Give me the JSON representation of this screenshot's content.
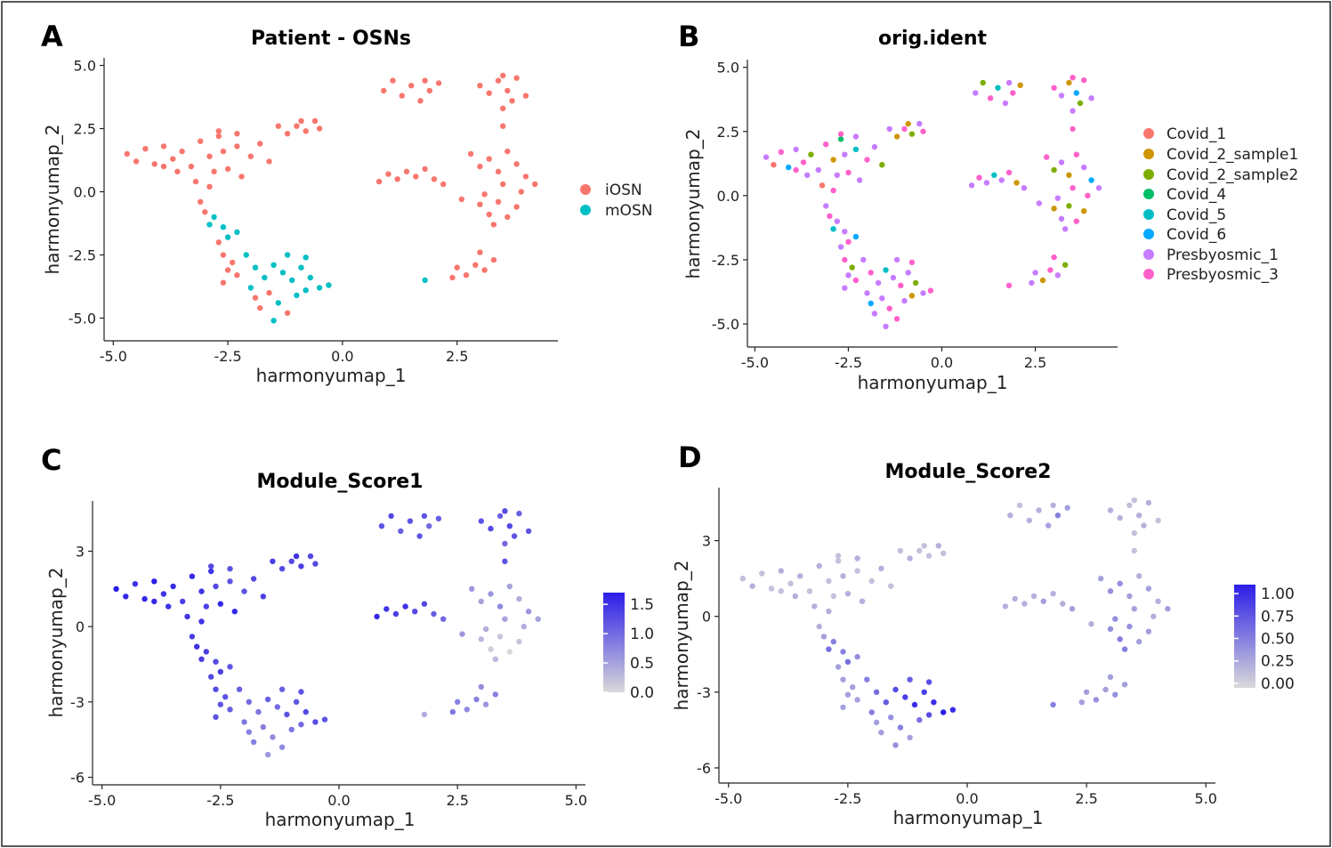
{
  "chart_data": [
    {
      "panel": "A",
      "type": "scatter",
      "title": "Patient - OSNs",
      "xlabel": "harmonyumap_1",
      "ylabel": "harmonyumap_2",
      "xlim": [
        -5.2,
        4.7
      ],
      "ylim": [
        -5.9,
        5.3
      ],
      "xticks": [
        -5.0,
        -2.5,
        0.0,
        2.5
      ],
      "yticks": [
        -5.0,
        -2.5,
        0.0,
        2.5,
        5.0
      ],
      "xticklabels": [
        "-5.0",
        "-2.5",
        "0.0",
        "2.5"
      ],
      "yticklabels": [
        "-5.0",
        "-2.5",
        "0.0",
        "2.5",
        "5.0"
      ],
      "color_mode": "categorical",
      "legend": {
        "position": "right",
        "title": "",
        "items": [
          {
            "name": "iOSN",
            "color": "#F8766D"
          },
          {
            "name": "mOSN",
            "color": "#00BFC4"
          }
        ]
      }
    },
    {
      "panel": "B",
      "type": "scatter",
      "title": "orig.ident",
      "xlabel": "harmonyumap_1",
      "ylabel": "harmonyumap_2",
      "xlim": [
        -5.2,
        4.7
      ],
      "ylim": [
        -5.9,
        5.3
      ],
      "xticks": [
        -5.0,
        -2.5,
        0.0,
        2.5
      ],
      "yticks": [
        -5.0,
        -2.5,
        0.0,
        2.5,
        5.0
      ],
      "xticklabels": [
        "-5.0",
        "-2.5",
        "0.0",
        "2.5"
      ],
      "yticklabels": [
        "-5.0",
        "-2.5",
        "0.0",
        "2.5",
        "5.0"
      ],
      "color_mode": "categorical",
      "legend": {
        "position": "right",
        "title": "",
        "items": [
          {
            "name": "Covid_1",
            "color": "#F8766D"
          },
          {
            "name": "Covid_2_sample1",
            "color": "#CD9600"
          },
          {
            "name": "Covid_2_sample2",
            "color": "#7CAE00"
          },
          {
            "name": "Covid_4",
            "color": "#00BE67"
          },
          {
            "name": "Covid_5",
            "color": "#00BFC4"
          },
          {
            "name": "Covid_6",
            "color": "#00A9FF"
          },
          {
            "name": "Presbyosmic_1",
            "color": "#C77CFF"
          },
          {
            "name": "Presbyosmic_3",
            "color": "#FF61CC"
          }
        ]
      }
    },
    {
      "panel": "C",
      "type": "scatter",
      "title": "Module_Score1",
      "xlabel": "harmonyumap_1",
      "ylabel": "harmonyumap_2",
      "xlim": [
        -5.2,
        5.2
      ],
      "ylim": [
        -6.3,
        5.0
      ],
      "xticks": [
        -5.0,
        -2.5,
        0.0,
        2.5,
        5.0
      ],
      "yticks": [
        -6,
        -3,
        0,
        3
      ],
      "xticklabels": [
        "-5.0",
        "-2.5",
        "0.0",
        "2.5",
        "5.0"
      ],
      "yticklabels": [
        "-6",
        "-3",
        "0",
        "3"
      ],
      "color_mode": "gradient",
      "gradient": [
        "#D9D9D9",
        "#2B1DE8"
      ],
      "colorbar": {
        "min": 0.0,
        "max": 1.7,
        "ticks": [
          0.0,
          0.5,
          1.0,
          1.5
        ],
        "ticklabels": [
          "0.0",
          "0.5",
          "1.0",
          "1.5"
        ]
      }
    },
    {
      "panel": "D",
      "type": "scatter",
      "title": "Module_Score2",
      "xlabel": "harmonyumap_1",
      "ylabel": "harmonyumap_2",
      "xlim": [
        -5.2,
        5.2
      ],
      "ylim": [
        -6.6,
        5.1
      ],
      "xticks": [
        -5.0,
        -2.5,
        0.0,
        2.5,
        5.0
      ],
      "yticks": [
        -6,
        -3,
        0,
        3
      ],
      "xticklabels": [
        "-5.0",
        "-2.5",
        "0.0",
        "2.5",
        "5.0"
      ],
      "yticklabels": [
        "-6",
        "-3",
        "0",
        "3"
      ],
      "color_mode": "gradient",
      "gradient": [
        "#D9D9D9",
        "#2B1DE8"
      ],
      "colorbar": {
        "min": -0.05,
        "max": 1.1,
        "ticks": [
          0.0,
          0.25,
          0.5,
          0.75,
          1.0
        ],
        "ticklabels": [
          "0.00",
          "0.25",
          "0.50",
          "0.75",
          "1.00"
        ]
      }
    }
  ],
  "cluster_points": {
    "columns": [
      "x",
      "y",
      "cell_type",
      "orig_ident_index",
      "module_score1",
      "module_score2"
    ],
    "rows": [
      [
        -4.7,
        1.5,
        "iOSN",
        6,
        1.7,
        0.1
      ],
      [
        -4.5,
        1.2,
        "iOSN",
        0,
        1.6,
        0.2
      ],
      [
        -4.3,
        1.7,
        "iOSN",
        7,
        1.5,
        0.1
      ],
      [
        -4.1,
        1.1,
        "iOSN",
        5,
        1.6,
        0.1
      ],
      [
        -3.9,
        1.8,
        "iOSN",
        6,
        1.7,
        0.2
      ],
      [
        -3.7,
        1.3,
        "iOSN",
        7,
        1.5,
        0.1
      ],
      [
        -3.5,
        1.6,
        "iOSN",
        2,
        1.6,
        0.2
      ],
      [
        -3.3,
        1.0,
        "iOSN",
        6,
        1.4,
        0.1
      ],
      [
        -3.1,
        2.0,
        "iOSN",
        7,
        1.6,
        0.2
      ],
      [
        -2.9,
        1.4,
        "iOSN",
        1,
        1.5,
        0.1
      ],
      [
        -2.7,
        2.2,
        "iOSN",
        3,
        1.5,
        0.1
      ],
      [
        -2.6,
        1.6,
        "iOSN",
        6,
        1.3,
        0.2
      ],
      [
        -2.5,
        0.9,
        "iOSN",
        7,
        1.6,
        0.2
      ],
      [
        -2.3,
        1.8,
        "iOSN",
        4,
        1.2,
        0.1
      ],
      [
        -2.2,
        0.6,
        "iOSN",
        6,
        1.6,
        0.2
      ],
      [
        -2.0,
        1.4,
        "iOSN",
        7,
        1.2,
        0.1
      ],
      [
        -1.8,
        1.9,
        "iOSN",
        6,
        1.3,
        0.2
      ],
      [
        -1.6,
        1.2,
        "iOSN",
        2,
        1.4,
        0.1
      ],
      [
        -3.9,
        1.0,
        "iOSN",
        7,
        1.6,
        0.1
      ],
      [
        -3.6,
        0.8,
        "iOSN",
        6,
        1.5,
        0.2
      ],
      [
        -2.8,
        0.8,
        "iOSN",
        6,
        1.4,
        0.1
      ],
      [
        -2.9,
        0.2,
        "iOSN",
        7,
        1.5,
        0.2
      ],
      [
        -3.2,
        0.4,
        "iOSN",
        0,
        1.5,
        0.2
      ],
      [
        -2.7,
        2.4,
        "iOSN",
        7,
        1.3,
        0.1
      ],
      [
        -2.3,
        2.3,
        "iOSN",
        6,
        1.2,
        0.2
      ],
      [
        -1.4,
        2.6,
        "iOSN",
        6,
        1.4,
        0.1
      ],
      [
        -1.2,
        2.3,
        "iOSN",
        1,
        1.3,
        0.2
      ],
      [
        -1.0,
        2.6,
        "iOSN",
        7,
        1.3,
        0.1
      ],
      [
        -0.8,
        2.4,
        "iOSN",
        2,
        1.4,
        0.1
      ],
      [
        -0.6,
        2.8,
        "iOSN",
        6,
        1.3,
        0.2
      ],
      [
        -0.5,
        2.5,
        "iOSN",
        7,
        1.3,
        0.1
      ],
      [
        -0.9,
        2.8,
        "iOSN",
        1,
        1.5,
        0.1
      ],
      [
        -3.1,
        -0.4,
        "iOSN",
        6,
        1.4,
        0.2
      ],
      [
        -3.0,
        -0.8,
        "iOSN",
        7,
        1.5,
        0.3
      ],
      [
        -2.8,
        -1.0,
        "mOSN",
        6,
        1.4,
        0.5
      ],
      [
        -2.9,
        -1.3,
        "mOSN",
        4,
        1.4,
        0.6
      ],
      [
        -2.6,
        -1.4,
        "mOSN",
        6,
        1.3,
        0.5
      ],
      [
        -2.5,
        -1.8,
        "mOSN",
        7,
        1.4,
        0.6
      ],
      [
        -2.3,
        -1.6,
        "mOSN",
        5,
        1.2,
        0.4
      ],
      [
        -2.7,
        -2.0,
        "iOSN",
        6,
        1.3,
        0.3
      ],
      [
        -2.6,
        -2.5,
        "iOSN",
        7,
        1.3,
        0.3
      ],
      [
        -2.4,
        -2.8,
        "iOSN",
        2,
        1.2,
        0.3
      ],
      [
        -2.5,
        -3.1,
        "iOSN",
        6,
        1.2,
        0.3
      ],
      [
        -2.3,
        -3.3,
        "iOSN",
        7,
        1.1,
        0.3
      ],
      [
        -2.6,
        -3.6,
        "iOSN",
        6,
        1.2,
        0.3
      ],
      [
        -2.1,
        -2.5,
        "mOSN",
        6,
        1.1,
        0.5
      ],
      [
        -1.9,
        -3.0,
        "mOSN",
        7,
        1.0,
        0.6
      ],
      [
        -1.7,
        -3.4,
        "mOSN",
        6,
        0.9,
        0.7
      ],
      [
        -1.5,
        -2.9,
        "mOSN",
        4,
        1.1,
        0.8
      ],
      [
        -1.3,
        -3.2,
        "mOSN",
        6,
        1.0,
        0.9
      ],
      [
        -1.1,
        -3.5,
        "mOSN",
        7,
        1.2,
        1.0
      ],
      [
        -0.9,
        -3.0,
        "mOSN",
        6,
        1.2,
        0.9
      ],
      [
        -0.7,
        -3.4,
        "mOSN",
        2,
        1.3,
        1.0
      ],
      [
        -0.5,
        -3.8,
        "mOSN",
        6,
        1.3,
        1.1
      ],
      [
        -0.3,
        -3.7,
        "mOSN",
        7,
        1.2,
        1.0
      ],
      [
        -1.2,
        -2.5,
        "mOSN",
        6,
        1.1,
        0.7
      ],
      [
        -0.8,
        -2.6,
        "mOSN",
        7,
        1.2,
        0.8
      ],
      [
        -1.6,
        -4.0,
        "iOSN",
        6,
        0.8,
        0.4
      ],
      [
        -1.4,
        -4.4,
        "mOSN",
        7,
        0.7,
        0.5
      ],
      [
        -1.8,
        -4.6,
        "iOSN",
        6,
        0.8,
        0.3
      ],
      [
        -1.2,
        -4.8,
        "iOSN",
        7,
        0.7,
        0.3
      ],
      [
        -1.5,
        -5.1,
        "mOSN",
        6,
        0.6,
        0.4
      ],
      [
        -1.9,
        -4.2,
        "iOSN",
        5,
        0.8,
        0.3
      ],
      [
        -1.0,
        -4.1,
        "mOSN",
        6,
        0.9,
        0.6
      ],
      [
        -0.8,
        -3.9,
        "mOSN",
        1,
        1.0,
        0.8
      ],
      [
        -2.0,
        -3.8,
        "mOSN",
        6,
        0.9,
        0.5
      ],
      [
        0.9,
        4.0,
        "iOSN",
        6,
        1.2,
        0.2
      ],
      [
        1.1,
        4.4,
        "iOSN",
        2,
        1.3,
        0.1
      ],
      [
        1.3,
        3.8,
        "iOSN",
        7,
        1.1,
        0.2
      ],
      [
        1.5,
        4.2,
        "iOSN",
        4,
        1.2,
        0.2
      ],
      [
        1.7,
        3.6,
        "iOSN",
        6,
        1.2,
        0.3
      ],
      [
        1.9,
        4.0,
        "iOSN",
        7,
        1.0,
        0.5
      ],
      [
        2.1,
        4.3,
        "iOSN",
        1,
        1.1,
        0.3
      ],
      [
        1.8,
        4.4,
        "iOSN",
        6,
        1.2,
        0.2
      ],
      [
        3.0,
        4.2,
        "iOSN",
        7,
        1.2,
        0.2
      ],
      [
        3.2,
        3.9,
        "iOSN",
        6,
        1.3,
        0.2
      ],
      [
        3.4,
        4.4,
        "iOSN",
        1,
        1.1,
        0.1
      ],
      [
        3.6,
        4.0,
        "iOSN",
        5,
        1.3,
        0.2
      ],
      [
        3.8,
        4.5,
        "iOSN",
        7,
        1.1,
        0.2
      ],
      [
        4.0,
        3.8,
        "iOSN",
        6,
        1.2,
        0.1
      ],
      [
        3.7,
        3.6,
        "iOSN",
        2,
        1.2,
        0.2
      ],
      [
        3.5,
        4.6,
        "iOSN",
        7,
        1.3,
        0.1
      ],
      [
        3.5,
        3.3,
        "iOSN",
        6,
        1.0,
        0.1
      ],
      [
        3.5,
        2.6,
        "iOSN",
        7,
        1.2,
        0.1
      ],
      [
        0.8,
        0.4,
        "iOSN",
        6,
        1.6,
        0.2
      ],
      [
        1.0,
        0.7,
        "iOSN",
        7,
        1.5,
        0.2
      ],
      [
        1.2,
        0.5,
        "iOSN",
        6,
        1.4,
        0.2
      ],
      [
        1.4,
        0.8,
        "iOSN",
        4,
        1.5,
        0.2
      ],
      [
        1.6,
        0.6,
        "iOSN",
        6,
        1.3,
        0.3
      ],
      [
        1.8,
        0.9,
        "iOSN",
        7,
        1.3,
        0.2
      ],
      [
        2.0,
        0.5,
        "iOSN",
        1,
        1.1,
        0.2
      ],
      [
        2.2,
        0.3,
        "iOSN",
        6,
        1.0,
        0.3
      ],
      [
        2.8,
        1.5,
        "iOSN",
        7,
        0.6,
        0.3
      ],
      [
        3.0,
        1.0,
        "iOSN",
        2,
        0.5,
        0.4
      ],
      [
        3.2,
        1.3,
        "iOSN",
        6,
        0.6,
        0.4
      ],
      [
        3.4,
        0.8,
        "iOSN",
        1,
        0.7,
        0.3
      ],
      [
        3.6,
        1.6,
        "iOSN",
        7,
        0.5,
        0.2
      ],
      [
        3.8,
        1.1,
        "iOSN",
        6,
        0.4,
        0.3
      ],
      [
        4.0,
        0.6,
        "iOSN",
        5,
        0.6,
        0.2
      ],
      [
        4.2,
        0.3,
        "iOSN",
        6,
        0.5,
        0.3
      ],
      [
        3.9,
        0.0,
        "iOSN",
        7,
        0.4,
        0.2
      ],
      [
        3.0,
        -0.5,
        "iOSN",
        1,
        0.3,
        0.4
      ],
      [
        3.2,
        -0.9,
        "iOSN",
        6,
        0.1,
        0.5
      ],
      [
        3.4,
        -0.4,
        "iOSN",
        2,
        0.2,
        0.4
      ],
      [
        3.6,
        -1.0,
        "iOSN",
        7,
        0.0,
        0.3
      ],
      [
        3.3,
        -1.3,
        "iOSN",
        6,
        0.3,
        0.5
      ],
      [
        3.8,
        -0.6,
        "iOSN",
        1,
        0.2,
        0.3
      ],
      [
        3.1,
        -0.1,
        "iOSN",
        6,
        0.4,
        0.4
      ],
      [
        3.5,
        0.3,
        "iOSN",
        7,
        0.5,
        0.3
      ],
      [
        2.6,
        -0.3,
        "iOSN",
        6,
        0.6,
        0.2
      ],
      [
        2.5,
        -3.0,
        "iOSN",
        6,
        0.8,
        0.3
      ],
      [
        2.7,
        -3.3,
        "iOSN",
        1,
        0.7,
        0.4
      ],
      [
        2.9,
        -2.9,
        "iOSN",
        7,
        0.8,
        0.3
      ],
      [
        3.1,
        -3.1,
        "iOSN",
        6,
        0.6,
        0.4
      ],
      [
        3.3,
        -2.7,
        "iOSN",
        2,
        0.8,
        0.3
      ],
      [
        2.4,
        -3.4,
        "iOSN",
        6,
        0.9,
        0.3
      ],
      [
        3.0,
        -2.4,
        "iOSN",
        7,
        0.7,
        0.3
      ],
      [
        1.8,
        -3.5,
        "mOSN",
        7,
        0.4,
        0.5
      ]
    ]
  }
}
